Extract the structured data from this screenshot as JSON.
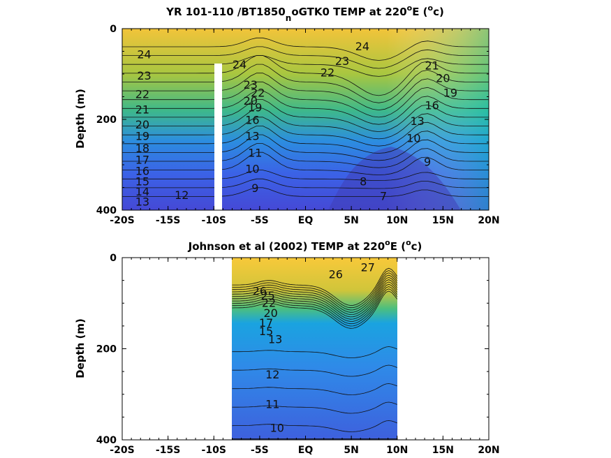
{
  "chart_data": [
    {
      "type": "heatmap",
      "title_main": "YR 101-110 /BT1850",
      "title_sub": "n",
      "title_rest": "oGTK0 TEMP at 220",
      "title_sup": "o",
      "title_end": "E (",
      "title_unit_sup": "o",
      "title_tail": "c)",
      "ylabel": "Depth (m)",
      "x_ticks": [
        "-20S",
        "-15S",
        "-10S",
        "-5S",
        "EQ",
        "5N",
        "10N",
        "15N",
        "20N"
      ],
      "y_ticks": [
        "0",
        "200",
        "400"
      ],
      "xlim": [
        -20,
        20
      ],
      "ylim": [
        0,
        400
      ],
      "data_xlim": [
        -20,
        20
      ],
      "gap_x": -9.8,
      "contour_levels": [
        7,
        8,
        9,
        10,
        11,
        12,
        13,
        14,
        15,
        16,
        17,
        18,
        19,
        20,
        21,
        22,
        23,
        24
      ],
      "contour_labels": [
        {
          "text": "24",
          "x": -17.6,
          "y": 65
        },
        {
          "text": "23",
          "x": -17.6,
          "y": 112
        },
        {
          "text": "22",
          "x": -17.8,
          "y": 153
        },
        {
          "text": "21",
          "x": -17.8,
          "y": 187
        },
        {
          "text": "20",
          "x": -17.8,
          "y": 220
        },
        {
          "text": "19",
          "x": -17.8,
          "y": 245
        },
        {
          "text": "18",
          "x": -17.8,
          "y": 272
        },
        {
          "text": "17",
          "x": -17.8,
          "y": 298
        },
        {
          "text": "16",
          "x": -17.8,
          "y": 322
        },
        {
          "text": "15",
          "x": -17.8,
          "y": 345
        },
        {
          "text": "14",
          "x": -17.8,
          "y": 368
        },
        {
          "text": "13",
          "x": -17.8,
          "y": 390
        },
        {
          "text": "12",
          "x": -13.5,
          "y": 375
        },
        {
          "text": "24",
          "x": -7.2,
          "y": 88
        },
        {
          "text": "23",
          "x": -6.0,
          "y": 132
        },
        {
          "text": "22",
          "x": -5.2,
          "y": 150
        },
        {
          "text": "20",
          "x": -6.0,
          "y": 168
        },
        {
          "text": "19",
          "x": -5.5,
          "y": 182
        },
        {
          "text": "16",
          "x": -5.8,
          "y": 210
        },
        {
          "text": "13",
          "x": -5.8,
          "y": 245
        },
        {
          "text": "11",
          "x": -5.5,
          "y": 282
        },
        {
          "text": "10",
          "x": -5.8,
          "y": 318
        },
        {
          "text": "9",
          "x": -5.5,
          "y": 360
        },
        {
          "text": "24",
          "x": 6.2,
          "y": 48
        },
        {
          "text": "23",
          "x": 4.0,
          "y": 80
        },
        {
          "text": "22",
          "x": 2.4,
          "y": 105
        },
        {
          "text": "21",
          "x": 13.8,
          "y": 90
        },
        {
          "text": "20",
          "x": 15.0,
          "y": 118
        },
        {
          "text": "19",
          "x": 15.8,
          "y": 150
        },
        {
          "text": "16",
          "x": 13.8,
          "y": 178
        },
        {
          "text": "13",
          "x": 12.2,
          "y": 212
        },
        {
          "text": "10",
          "x": 11.8,
          "y": 250
        },
        {
          "text": "9",
          "x": 13.3,
          "y": 302
        },
        {
          "text": "8",
          "x": 6.3,
          "y": 345
        },
        {
          "text": "7",
          "x": 8.5,
          "y": 378
        }
      ]
    },
    {
      "type": "heatmap",
      "title_main": "Johnson et al (2002) TEMP at 220",
      "title_sup": "o",
      "title_end": "E (",
      "title_unit_sup": "o",
      "title_tail": "c)",
      "ylabel": "Depth (m)",
      "x_ticks": [
        "-20S",
        "-15S",
        "-10S",
        "-5S",
        "EQ",
        "5N",
        "10N",
        "15N",
        "20N"
      ],
      "y_ticks": [
        "0",
        "200",
        "400"
      ],
      "xlim": [
        -20,
        20
      ],
      "ylim": [
        0,
        400
      ],
      "data_xlim": [
        -8,
        10
      ],
      "contour_levels": [
        10,
        11,
        12,
        13,
        14,
        15,
        16,
        17,
        18,
        19,
        20,
        21,
        22,
        23,
        24,
        25,
        26,
        27
      ],
      "contour_labels": [
        {
          "text": "27",
          "x": 6.8,
          "y": 30
        },
        {
          "text": "26",
          "x": 3.3,
          "y": 45
        },
        {
          "text": "26",
          "x": -5.0,
          "y": 82
        },
        {
          "text": "25",
          "x": -4.1,
          "y": 92
        },
        {
          "text": "22",
          "x": -4.0,
          "y": 108
        },
        {
          "text": "20",
          "x": -3.8,
          "y": 130
        },
        {
          "text": "17",
          "x": -4.3,
          "y": 152
        },
        {
          "text": "15",
          "x": -4.3,
          "y": 170
        },
        {
          "text": "13",
          "x": -3.3,
          "y": 188
        },
        {
          "text": "12",
          "x": -3.6,
          "y": 265
        },
        {
          "text": "11",
          "x": -3.6,
          "y": 330
        },
        {
          "text": "10",
          "x": -3.1,
          "y": 382
        }
      ]
    }
  ]
}
